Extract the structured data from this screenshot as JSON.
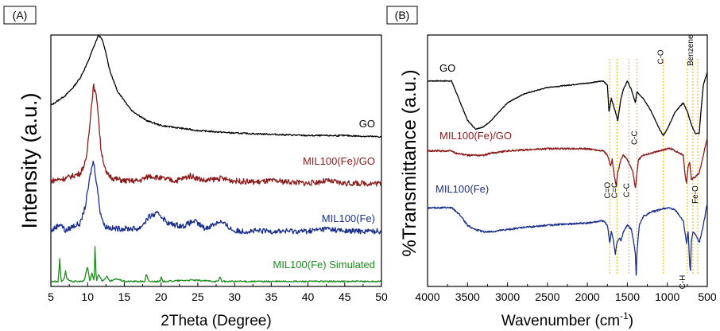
{
  "chart_data": [
    {
      "panel_label": "(A)",
      "type": "line",
      "xlabel": "2Theta (Degree)",
      "ylabel": "Intensity (a.u.)",
      "xlim": [
        5,
        50
      ],
      "xticks": [
        5,
        10,
        15,
        20,
        25,
        30,
        35,
        40,
        45,
        50
      ],
      "series": [
        {
          "name": "GO",
          "color": "#000000",
          "x": [
            5,
            7,
            8,
            9,
            10,
            10.8,
            11.5,
            12,
            12.5,
            13,
            14,
            16,
            18,
            20,
            25,
            30,
            35,
            40,
            45,
            50
          ],
          "y": [
            0.72,
            0.76,
            0.79,
            0.83,
            0.89,
            0.95,
            1.0,
            0.98,
            0.93,
            0.86,
            0.78,
            0.7,
            0.66,
            0.64,
            0.62,
            0.61,
            0.605,
            0.6,
            0.6,
            0.595
          ]
        },
        {
          "name": "MIL100(Fe)/GO",
          "color": "#8b1a1a",
          "x": [
            5,
            7,
            8,
            9,
            9.8,
            10.3,
            10.8,
            11.3,
            11.8,
            12.5,
            13.5,
            15,
            17,
            18.5,
            20,
            22,
            24,
            26,
            28,
            30,
            33,
            35,
            38,
            40,
            42.5,
            45,
            48,
            50
          ],
          "y": [
            0.42,
            0.43,
            0.44,
            0.45,
            0.5,
            0.65,
            0.8,
            0.74,
            0.55,
            0.45,
            0.43,
            0.42,
            0.42,
            0.44,
            0.43,
            0.42,
            0.44,
            0.42,
            0.43,
            0.42,
            0.415,
            0.42,
            0.415,
            0.41,
            0.42,
            0.41,
            0.41,
            0.41
          ]
        },
        {
          "name": "MIL100(Fe)",
          "color": "#1a2f8c",
          "x": [
            5,
            6.3,
            7,
            8,
            9,
            9.7,
            10.4,
            10.8,
            11.2,
            11.7,
            12.3,
            13.5,
            15,
            17,
            18.5,
            19.7,
            21,
            23,
            24.5,
            26,
            28,
            30,
            33,
            35,
            38,
            40,
            42.5,
            45,
            48,
            50
          ],
          "y": [
            0.22,
            0.25,
            0.22,
            0.24,
            0.25,
            0.32,
            0.45,
            0.5,
            0.42,
            0.3,
            0.24,
            0.23,
            0.23,
            0.23,
            0.28,
            0.29,
            0.25,
            0.24,
            0.26,
            0.23,
            0.26,
            0.22,
            0.22,
            0.22,
            0.22,
            0.22,
            0.23,
            0.22,
            0.22,
            0.22
          ]
        },
        {
          "name": "MIL100(Fe) Simulated",
          "color": "#1a8c1a",
          "x": [
            5,
            6.0,
            6.2,
            6.4,
            6.8,
            7.0,
            7.2,
            7.6,
            9.5,
            10.0,
            10.3,
            10.6,
            10.9,
            11.0,
            11.2,
            11.5,
            12.0,
            12.6,
            13.0,
            14.0,
            15.0,
            17.8,
            18.0,
            18.3,
            19.9,
            20.0,
            20.2,
            24.0,
            27.8,
            28.0,
            28.3,
            34,
            40,
            45,
            50
          ],
          "y": [
            0.02,
            0.02,
            0.11,
            0.02,
            0.03,
            0.06,
            0.03,
            0.02,
            0.02,
            0.08,
            0.02,
            0.05,
            0.02,
            0.16,
            0.02,
            0.05,
            0.02,
            0.04,
            0.02,
            0.03,
            0.02,
            0.02,
            0.05,
            0.02,
            0.02,
            0.04,
            0.02,
            0.025,
            0.02,
            0.04,
            0.02,
            0.02,
            0.02,
            0.02,
            0.02
          ]
        }
      ]
    },
    {
      "panel_label": "(B)",
      "type": "line",
      "xlabel": "Wavenumber (cm",
      "xlabel_sup": "-1",
      "xlabel_close": ")",
      "ylabel": "%Transmittance (a.u.)",
      "xlim": [
        4000,
        500
      ],
      "xticks": [
        4000,
        3500,
        3000,
        2500,
        2000,
        1500,
        1000,
        500
      ],
      "series": [
        {
          "name": "GO",
          "color": "#000000",
          "x": [
            4000,
            3800,
            3700,
            3600,
            3500,
            3400,
            3300,
            3200,
            3100,
            3000,
            2800,
            2500,
            2000,
            1800,
            1750,
            1730,
            1700,
            1650,
            1620,
            1580,
            1550,
            1500,
            1450,
            1400,
            1380,
            1300,
            1200,
            1100,
            1050,
            1000,
            900,
            800,
            750,
            700,
            650,
            600,
            580,
            550,
            500
          ],
          "y": [
            0.84,
            0.84,
            0.84,
            0.75,
            0.66,
            0.62,
            0.63,
            0.66,
            0.7,
            0.74,
            0.78,
            0.81,
            0.83,
            0.84,
            0.82,
            0.7,
            0.76,
            0.7,
            0.66,
            0.76,
            0.8,
            0.84,
            0.8,
            0.74,
            0.79,
            0.76,
            0.7,
            0.62,
            0.59,
            0.62,
            0.7,
            0.74,
            0.7,
            0.64,
            0.6,
            0.6,
            0.7,
            0.82,
            0.88
          ]
        },
        {
          "name": "MIL100(Fe)/GO",
          "color": "#8b1a1a",
          "x": [
            4000,
            3700,
            3650,
            3500,
            3400,
            3300,
            3200,
            3000,
            2500,
            2000,
            1800,
            1750,
            1710,
            1690,
            1660,
            1640,
            1620,
            1580,
            1550,
            1500,
            1450,
            1430,
            1400,
            1380,
            1360,
            1300,
            1100,
            1000,
            950,
            900,
            800,
            780,
            760,
            740,
            720,
            700,
            650,
            600,
            550,
            500
          ],
          "y": [
            0.52,
            0.52,
            0.51,
            0.5,
            0.5,
            0.5,
            0.51,
            0.52,
            0.53,
            0.53,
            0.52,
            0.5,
            0.45,
            0.48,
            0.4,
            0.36,
            0.42,
            0.48,
            0.5,
            0.48,
            0.44,
            0.42,
            0.35,
            0.42,
            0.48,
            0.5,
            0.52,
            0.53,
            0.53,
            0.52,
            0.5,
            0.42,
            0.37,
            0.45,
            0.47,
            0.39,
            0.4,
            0.42,
            0.5,
            0.58
          ]
        },
        {
          "name": "MIL100(Fe)",
          "color": "#1a2f8c",
          "x": [
            4000,
            3700,
            3600,
            3500,
            3400,
            3300,
            3200,
            3000,
            2800,
            2500,
            2000,
            1800,
            1750,
            1720,
            1700,
            1680,
            1650,
            1630,
            1600,
            1580,
            1550,
            1500,
            1450,
            1420,
            1400,
            1390,
            1380,
            1370,
            1350,
            1300,
            1200,
            1100,
            1000,
            900,
            800,
            780,
            760,
            740,
            720,
            710,
            700,
            680,
            650,
            600,
            550,
            500
          ],
          "y": [
            0.26,
            0.26,
            0.23,
            0.18,
            0.16,
            0.15,
            0.15,
            0.16,
            0.17,
            0.18,
            0.19,
            0.2,
            0.18,
            0.1,
            0.15,
            0.12,
            0.05,
            0.1,
            0.12,
            0.11,
            0.15,
            0.18,
            0.16,
            0.1,
            0.05,
            -0.05,
            0.05,
            0.1,
            0.18,
            0.22,
            0.24,
            0.25,
            0.26,
            0.25,
            0.2,
            0.15,
            0.1,
            0.15,
            0.0,
            -0.03,
            0.1,
            0.15,
            0.14,
            0.1,
            0.18,
            0.28
          ]
        }
      ],
      "reference_lines": [
        1720,
        1630,
        1480,
        1380,
        1050,
        750,
        680,
        620
      ],
      "annotations": [
        {
          "text": "C=O",
          "x": 1720,
          "y": 0.34,
          "rotated": true
        },
        {
          "text": "C=C",
          "x": 1630,
          "y": 0.34,
          "rotated": true
        },
        {
          "text": "C-C",
          "x": 1480,
          "y": 0.34,
          "rotated": true
        },
        {
          "text": "C-C",
          "x": 1380,
          "y": 0.58,
          "rotated": true
        },
        {
          "text": "C-O",
          "x": 1050,
          "y": 0.95,
          "rotated": true
        },
        {
          "text": "Benzene",
          "x": 680,
          "y": 0.98,
          "rotated": true
        },
        {
          "text": "Fe-O",
          "x": 620,
          "y": 0.32,
          "rotated": true
        },
        {
          "text": "C-H",
          "x": 780,
          "y": -0.08,
          "rotated": true
        }
      ]
    }
  ]
}
